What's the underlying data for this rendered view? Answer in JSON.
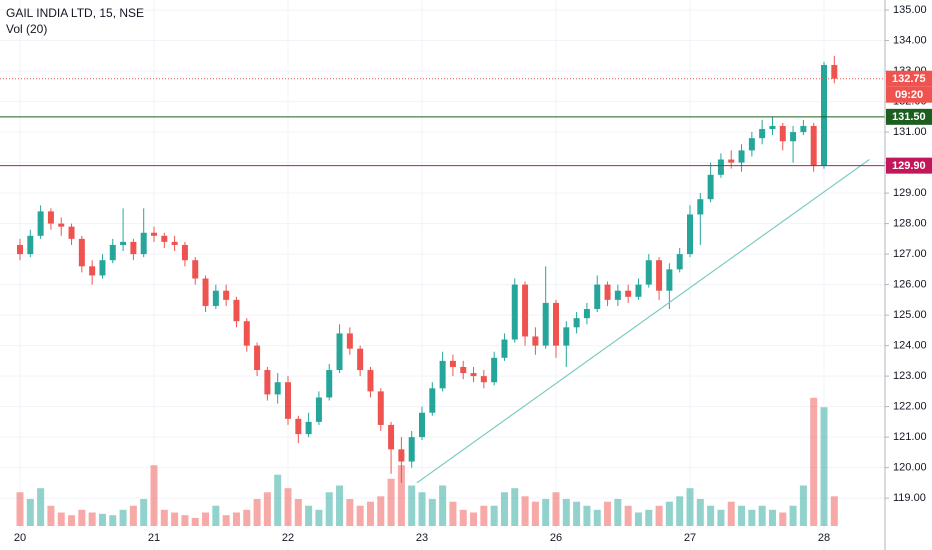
{
  "chart_data": {
    "type": "candlestick",
    "title": "GAIL INDIA LTD, 15, NSE",
    "volume_label": "Vol (20)",
    "categories": [
      "20",
      null,
      null,
      null,
      null,
      null,
      null,
      null,
      null,
      null,
      null,
      null,
      null,
      "21",
      null,
      null,
      null,
      null,
      null,
      null,
      null,
      null,
      null,
      null,
      null,
      null,
      "22",
      null,
      null,
      null,
      null,
      null,
      null,
      null,
      null,
      null,
      null,
      null,
      null,
      "23",
      null,
      null,
      null,
      null,
      null,
      null,
      null,
      null,
      null,
      null,
      null,
      null,
      "26",
      null,
      null,
      null,
      null,
      null,
      null,
      null,
      null,
      null,
      null,
      null,
      null,
      "27",
      null,
      null,
      null,
      null,
      null,
      null,
      null,
      null,
      null,
      null,
      null,
      null,
      "28",
      null
    ],
    "open": [
      127.3,
      127.0,
      127.6,
      128.4,
      128.0,
      127.9,
      127.5,
      126.6,
      126.3,
      126.8,
      127.3,
      127.4,
      127.0,
      127.7,
      127.6,
      127.4,
      127.3,
      126.8,
      126.2,
      125.3,
      125.8,
      125.5,
      124.8,
      124.0,
      123.2,
      122.4,
      122.8,
      121.6,
      121.1,
      121.5,
      122.3,
      123.2,
      124.4,
      123.9,
      123.2,
      122.5,
      121.4,
      120.6,
      120.2,
      121.0,
      121.8,
      122.6,
      123.5,
      123.3,
      123.1,
      123.0,
      122.8,
      123.6,
      124.2,
      126.0,
      124.3,
      124.0,
      125.4,
      124.0,
      124.6,
      124.9,
      125.2,
      126.0,
      125.5,
      125.8,
      125.6,
      126.0,
      126.8,
      125.8,
      126.5,
      127.0,
      128.3,
      128.8,
      129.6,
      130.1,
      130.0,
      130.4,
      130.8,
      131.1,
      131.2,
      130.7,
      131.0,
      131.2,
      129.9,
      133.2
    ],
    "high": [
      127.5,
      127.8,
      128.6,
      128.5,
      128.2,
      128.0,
      127.6,
      126.8,
      127.0,
      127.5,
      128.5,
      127.5,
      128.5,
      127.9,
      127.7,
      127.6,
      127.4,
      126.9,
      126.3,
      126.0,
      126.0,
      125.6,
      124.9,
      124.1,
      123.3,
      123.1,
      123.0,
      121.7,
      121.8,
      122.5,
      123.4,
      124.7,
      124.6,
      124.0,
      123.3,
      122.6,
      121.5,
      121.0,
      121.2,
      122.0,
      122.8,
      123.8,
      123.7,
      123.5,
      123.3,
      123.2,
      123.8,
      124.4,
      126.2,
      126.1,
      124.6,
      126.6,
      125.5,
      124.8,
      125.1,
      125.4,
      126.3,
      126.1,
      126.0,
      126.0,
      126.2,
      127.0,
      126.9,
      126.7,
      127.2,
      128.6,
      129.0,
      130.0,
      130.3,
      130.4,
      130.6,
      131.0,
      131.4,
      131.5,
      131.3,
      131.2,
      131.4,
      131.3,
      133.3,
      133.5
    ],
    "low": [
      126.8,
      126.9,
      127.5,
      127.8,
      127.6,
      127.3,
      126.4,
      126.0,
      126.2,
      126.7,
      127.1,
      126.8,
      126.9,
      127.4,
      127.2,
      127.1,
      126.6,
      126.0,
      125.1,
      125.2,
      125.3,
      124.6,
      123.8,
      123.0,
      122.2,
      122.1,
      121.4,
      120.8,
      121.0,
      121.4,
      122.2,
      123.1,
      123.7,
      123.0,
      122.3,
      121.2,
      119.8,
      119.5,
      120.0,
      120.9,
      121.7,
      122.5,
      123.0,
      122.9,
      122.8,
      122.6,
      122.7,
      123.5,
      124.1,
      124.0,
      123.7,
      123.9,
      123.6,
      123.3,
      124.4,
      124.7,
      125.1,
      125.3,
      125.3,
      125.4,
      125.5,
      125.9,
      125.5,
      125.2,
      126.4,
      126.9,
      127.3,
      128.7,
      129.5,
      129.8,
      129.7,
      130.2,
      130.6,
      130.9,
      130.4,
      130.0,
      130.9,
      129.7,
      129.8,
      132.6
    ],
    "close": [
      127.0,
      127.6,
      128.4,
      128.0,
      127.9,
      127.5,
      126.6,
      126.3,
      126.8,
      127.3,
      127.4,
      127.0,
      127.7,
      127.6,
      127.4,
      127.3,
      126.8,
      126.2,
      125.3,
      125.8,
      125.5,
      124.8,
      124.0,
      123.2,
      122.4,
      122.8,
      121.6,
      121.1,
      121.5,
      122.3,
      123.2,
      124.4,
      123.9,
      123.2,
      122.5,
      121.4,
      120.6,
      120.2,
      121.0,
      121.8,
      122.6,
      123.5,
      123.3,
      123.1,
      123.0,
      122.8,
      123.6,
      124.2,
      126.0,
      124.3,
      124.0,
      125.4,
      124.0,
      124.6,
      124.9,
      125.2,
      126.0,
      125.5,
      125.8,
      125.6,
      126.0,
      126.8,
      125.8,
      126.5,
      127.0,
      128.3,
      128.8,
      129.6,
      130.1,
      130.0,
      130.4,
      130.8,
      131.1,
      131.2,
      130.7,
      131.0,
      131.2,
      129.9,
      133.2,
      132.75
    ],
    "volume": [
      25,
      20,
      28,
      15,
      10,
      8,
      12,
      10,
      9,
      8,
      12,
      15,
      20,
      45,
      12,
      10,
      8,
      6,
      10,
      15,
      8,
      10,
      12,
      20,
      25,
      38,
      28,
      20,
      15,
      12,
      25,
      30,
      20,
      15,
      18,
      22,
      35,
      45,
      30,
      25,
      20,
      30,
      18,
      12,
      10,
      15,
      15,
      25,
      28,
      22,
      18,
      20,
      25,
      20,
      18,
      15,
      12,
      18,
      20,
      15,
      10,
      12,
      15,
      18,
      22,
      28,
      20,
      15,
      12,
      18,
      15,
      12,
      15,
      12,
      10,
      15,
      30,
      95,
      88,
      22
    ],
    "up_color": "#26a69a",
    "down_color": "#ef5350",
    "ylim": [
      117.3,
      135.33
    ],
    "yticks": [
      {
        "value": 119,
        "label": "119.00"
      },
      {
        "value": 120,
        "label": "120.00"
      },
      {
        "value": 121,
        "label": "121.00"
      },
      {
        "value": 122,
        "label": "122.00"
      },
      {
        "value": 123,
        "label": "123.00"
      },
      {
        "value": 124,
        "label": "124.00"
      },
      {
        "value": 125,
        "label": "125.00"
      },
      {
        "value": 126,
        "label": "126.00"
      },
      {
        "value": 127,
        "label": "127.00"
      },
      {
        "value": 128,
        "label": "128.00"
      },
      {
        "value": 129,
        "label": "129.00"
      },
      {
        "value": 130,
        "label": "130.00"
      },
      {
        "value": 131,
        "label": "131.00"
      },
      {
        "value": 132,
        "label": "132.00"
      },
      {
        "value": 133,
        "label": "133.00"
      },
      {
        "value": 134,
        "label": "134.00"
      },
      {
        "value": 135,
        "label": "135.00"
      }
    ],
    "grid": true,
    "price_lines": [
      {
        "value": 132.75,
        "label": "132.75",
        "color": "#ef5350",
        "style": "dotted"
      },
      {
        "value": 131.5,
        "label": "131.50",
        "color": "#1b5e20",
        "style": "solid"
      },
      {
        "value": 129.9,
        "label": "129.90",
        "color": "#c2185b",
        "style": "solid"
      }
    ],
    "countdown": "09:20",
    "trendline": {
      "x": [
        38.5,
        82.4
      ],
      "y": [
        119.5,
        130.1
      ],
      "color": "#80cbc4"
    }
  }
}
